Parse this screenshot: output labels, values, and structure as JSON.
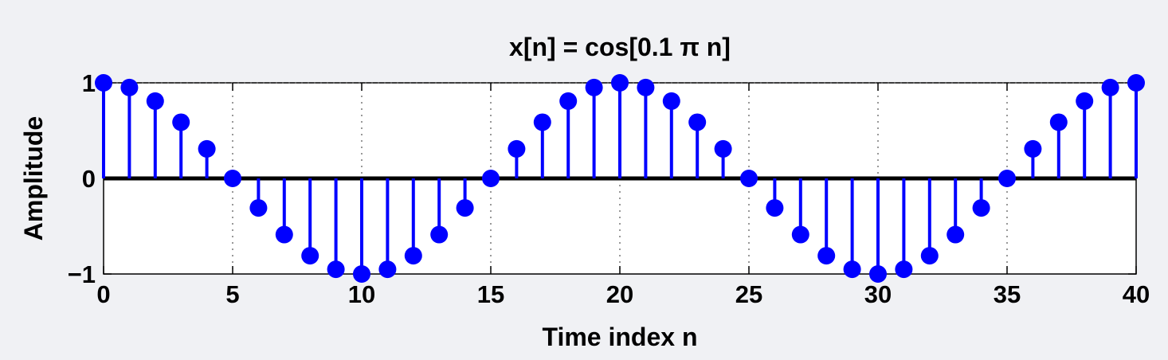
{
  "chart_data": {
    "type": "stem",
    "title": "x[n] = cos[0.1 π n]",
    "xlabel": "Time index n",
    "ylabel": "Amplitude",
    "xlim": [
      0,
      40
    ],
    "ylim": [
      -1,
      1
    ],
    "xticks": [
      0,
      5,
      10,
      15,
      20,
      25,
      30,
      35,
      40
    ],
    "yticks": [
      -1,
      0,
      1
    ],
    "yticklabels": [
      "−1",
      "0",
      "1"
    ],
    "grid": true,
    "colors": {
      "stem": "#0000ff",
      "baseline": "#000000",
      "background": "#f0f1f4",
      "plot_area": "#ffffff"
    },
    "x": [
      0,
      1,
      2,
      3,
      4,
      5,
      6,
      7,
      8,
      9,
      10,
      11,
      12,
      13,
      14,
      15,
      16,
      17,
      18,
      19,
      20,
      21,
      22,
      23,
      24,
      25,
      26,
      27,
      28,
      29,
      30,
      31,
      32,
      33,
      34,
      35,
      36,
      37,
      38,
      39,
      40
    ],
    "values": [
      1,
      0.951,
      0.809,
      0.588,
      0.309,
      0,
      -0.309,
      -0.588,
      -0.809,
      -0.951,
      -1,
      -0.951,
      -0.809,
      -0.588,
      -0.309,
      0,
      0.309,
      0.588,
      0.809,
      0.951,
      1,
      0.951,
      0.809,
      0.588,
      0.309,
      0,
      -0.309,
      -0.588,
      -0.809,
      -0.951,
      -1,
      -0.951,
      -0.809,
      -0.588,
      -0.309,
      0,
      0.309,
      0.588,
      0.809,
      0.951,
      1
    ]
  }
}
